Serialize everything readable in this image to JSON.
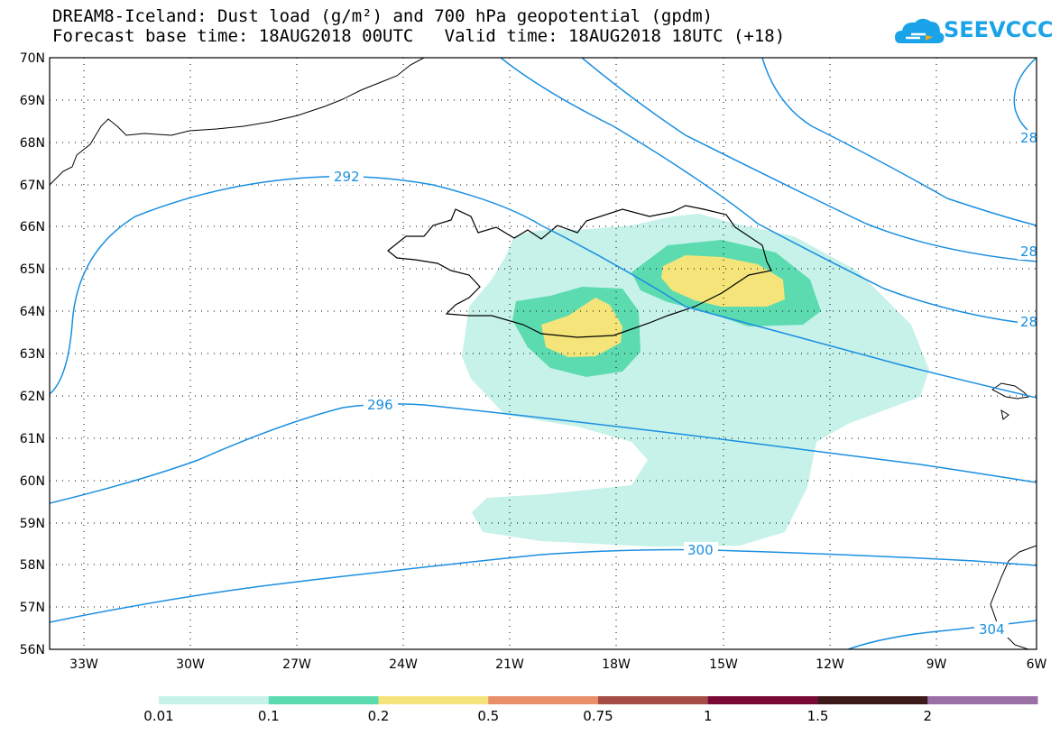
{
  "title": {
    "line1": "DREAM8-Iceland: Dust load (g/m²) and 700 hPa geopotential (gpdm)",
    "line2": "Forecast base time: 18AUG2018 00UTC   Valid time: 18AUG2018 18UTC (+18)"
  },
  "logo": {
    "text": "SEEVCCC",
    "icon": "cloud-icon",
    "color": "#1aa3e8"
  },
  "map": {
    "lat_labels": [
      "70N",
      "69N",
      "68N",
      "67N",
      "66N",
      "65N",
      "64N",
      "63N",
      "62N",
      "61N",
      "60N",
      "59N",
      "58N",
      "57N",
      "56N"
    ],
    "lon_labels": [
      "33W",
      "30W",
      "27W",
      "24W",
      "21W",
      "18W",
      "15W",
      "12W",
      "9W",
      "6W"
    ],
    "contour_labels": [
      "292",
      "296",
      "300",
      "304",
      "28",
      "28",
      "28"
    ],
    "contour_color": "#1a8fe0"
  },
  "colorbar": {
    "colors": [
      "#c6f2ea",
      "#5ddbb0",
      "#f5e479",
      "#e8906a",
      "#a44c45",
      "#7a0a35",
      "#3d1a1a",
      "#9a6fa6"
    ],
    "labels": [
      "0.01",
      "0.1",
      "0.2",
      "0.5",
      "0.75",
      "1",
      "1.5",
      "2"
    ]
  }
}
